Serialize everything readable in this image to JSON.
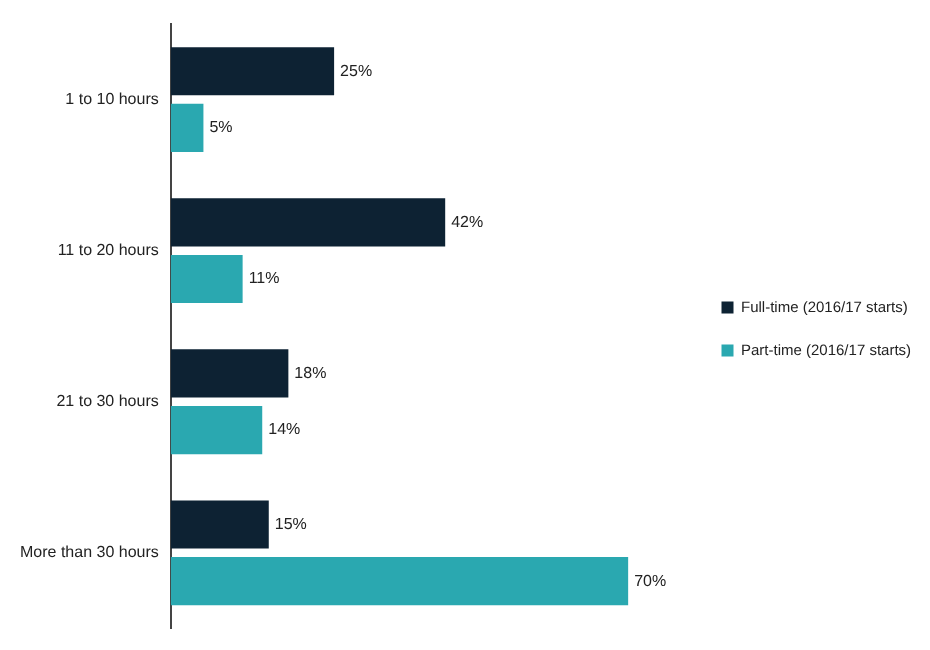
{
  "chart_data": {
    "type": "bar",
    "orientation": "horizontal",
    "categories": [
      "1 to 10 hours",
      "11 to 20 hours",
      "21 to 30 hours",
      "More than 30 hours"
    ],
    "series": [
      {
        "name": "Full-time (2016/17 starts)",
        "color": "#0d2233",
        "values": [
          25,
          42,
          18,
          15
        ],
        "value_labels": [
          "25%",
          "42%",
          "18%",
          "15%"
        ]
      },
      {
        "name": "Part-time (2016/17 starts)",
        "color": "#2aa8b0",
        "values": [
          5,
          11,
          14,
          70
        ],
        "value_labels": [
          "5%",
          "11%",
          "14%",
          "70%"
        ]
      }
    ],
    "legend": "right",
    "grid": false,
    "tick_labels": "y"
  }
}
